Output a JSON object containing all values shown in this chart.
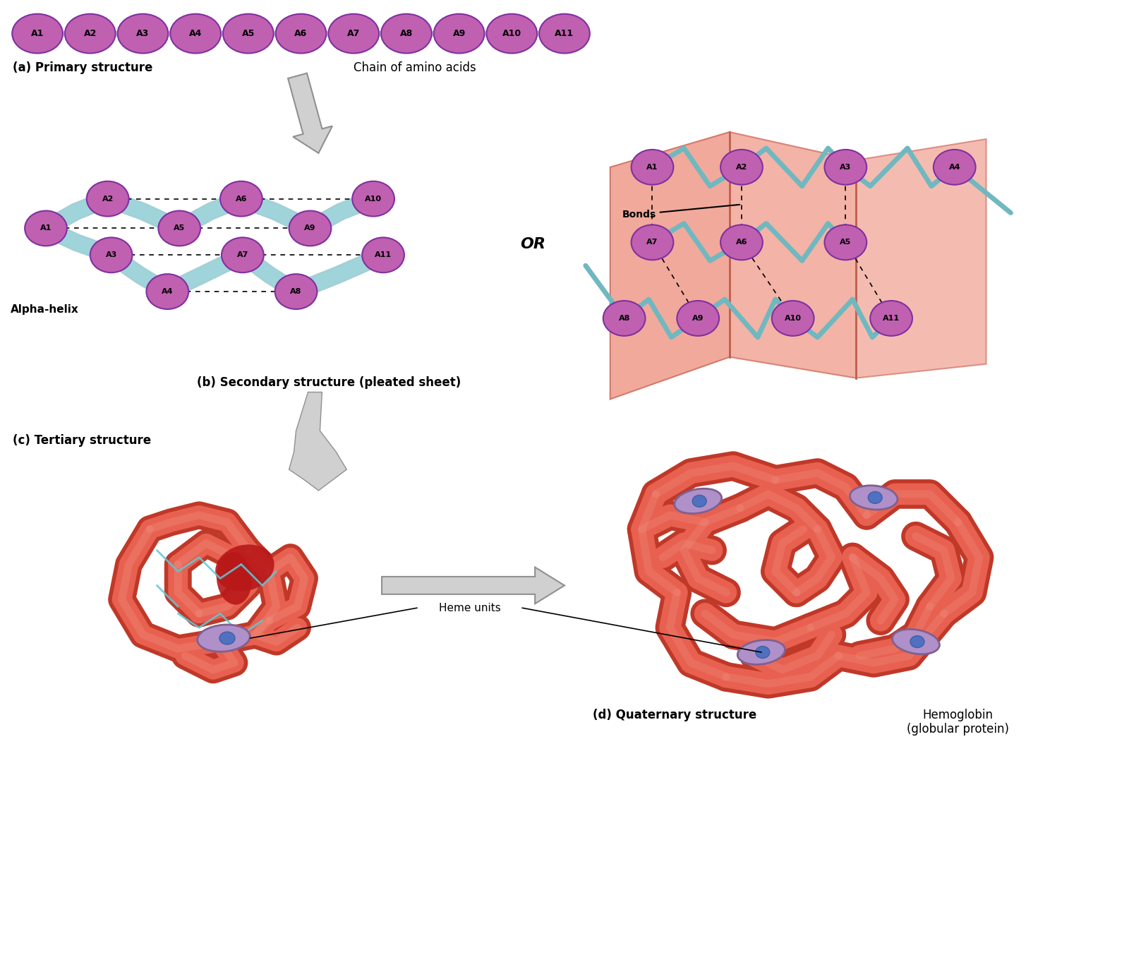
{
  "background_color": "#ffffff",
  "amino_acid_color": "#c060b0",
  "amino_acid_edge_color": "#8030a0",
  "connector_color": "#c8dce0",
  "helix_color": "#90d0d8",
  "sheet_bg_color": "#f0a090",
  "sheet_fold_color": "#d87060",
  "label_primary": "(a) Primary structure",
  "label_chain": "Chain of amino acids",
  "label_secondary": "(b) Secondary structure (pleated sheet)",
  "label_alpha": "Alpha-helix",
  "label_bonds": "Bonds",
  "label_or": "OR",
  "label_tertiary": "(c) Tertiary structure",
  "label_quaternary": "(d) Quaternary structure",
  "label_hemo": "Hemoglobin\n(globular protein)",
  "label_heme": "Heme units",
  "primary_nodes": [
    "A1",
    "A2",
    "A3",
    "A4",
    "A5",
    "A6",
    "A7",
    "A8",
    "A9",
    "A10",
    "A11"
  ],
  "protein_tube_color": "#e86050",
  "protein_tube_dark": "#c03828",
  "protein_tube_light": "#f09080",
  "heme_color": "#b090c8",
  "heme_edge_color": "#806090",
  "heme_center_color": "#5070c0",
  "arrow_fill": "#d0d0d0",
  "arrow_edge": "#909090"
}
